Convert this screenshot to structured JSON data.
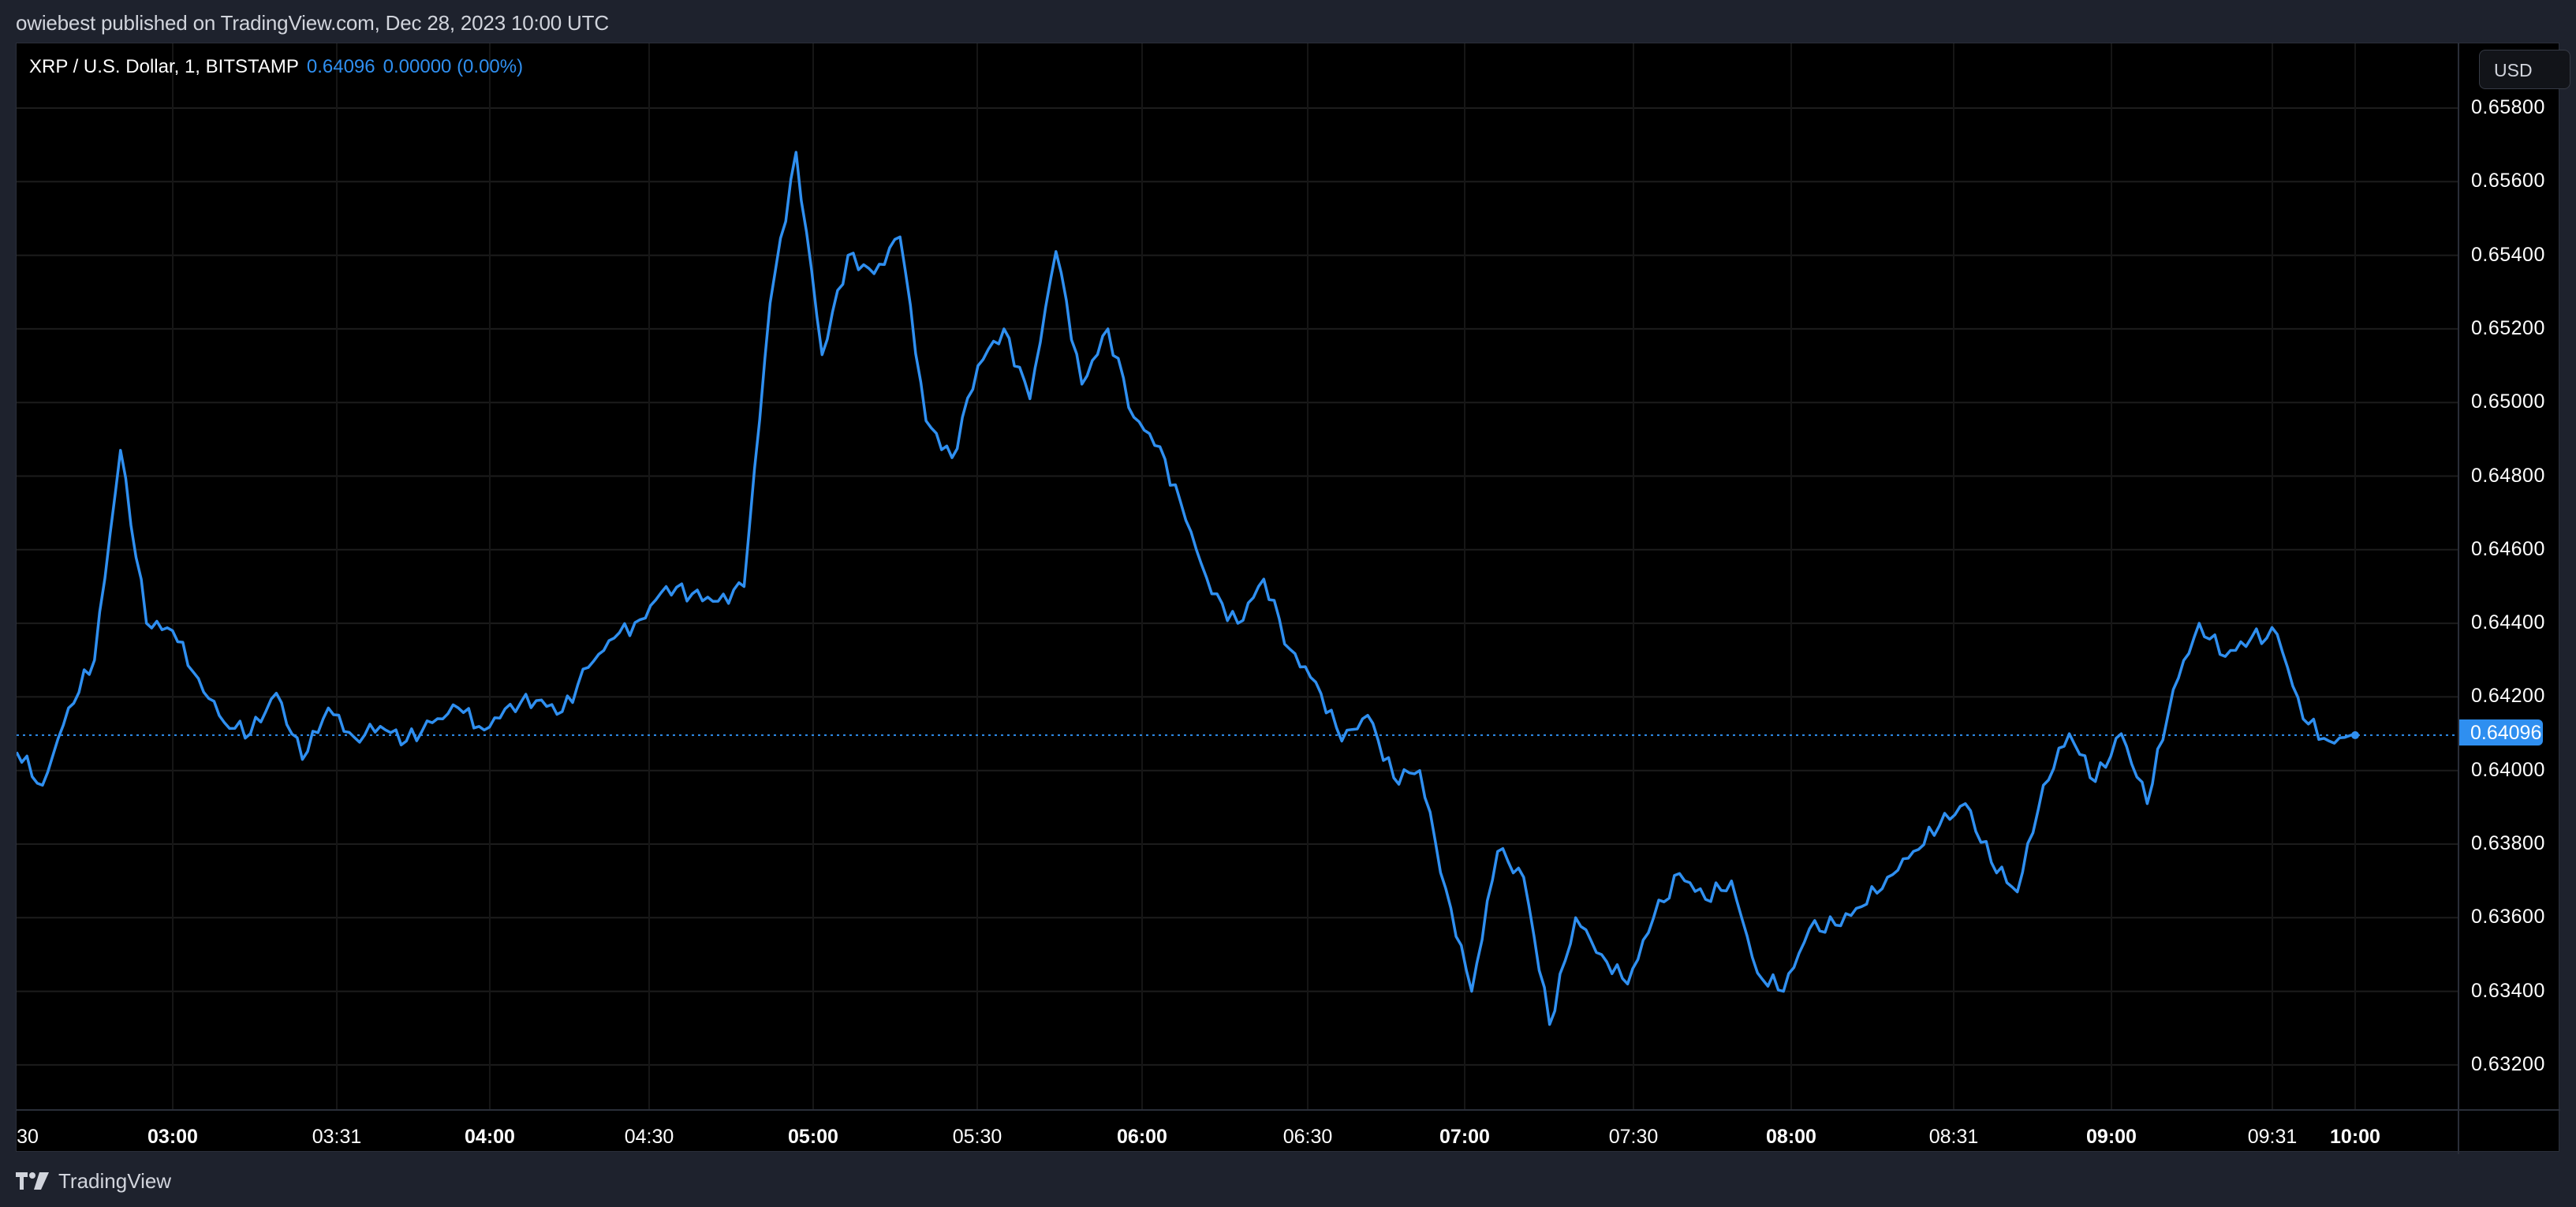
{
  "publish_info": "owiebest published on TradingView.com, Dec 28, 2023 10:00 UTC",
  "legend": {
    "symbol": "XRP / U.S. Dollar, 1, BITSTAMP",
    "last": "0.64096",
    "change": "0.00000 (0.00%)"
  },
  "currency_button": "USD",
  "last_price_tag": "0.64096",
  "footer_brand": "TradingView",
  "colors": {
    "line": "#2f8ff0",
    "background": "#000000",
    "frame": "#1e222d",
    "grid": "#1a1a1a",
    "bolt": "#9c3fd0"
  },
  "price_ticks": [
    "0.65800",
    "0.65600",
    "0.65400",
    "0.65200",
    "0.65000",
    "0.64800",
    "0.64600",
    "0.64400",
    "0.64200",
    "0.64000",
    "0.63800",
    "0.63600",
    "0.63400",
    "0.63200"
  ],
  "time_ticks": [
    {
      "label": "30",
      "bold": false
    },
    {
      "label": "03:00",
      "bold": true
    },
    {
      "label": "03:31",
      "bold": false
    },
    {
      "label": "04:00",
      "bold": true
    },
    {
      "label": "04:30",
      "bold": false
    },
    {
      "label": "05:00",
      "bold": true
    },
    {
      "label": "05:30",
      "bold": false
    },
    {
      "label": "06:00",
      "bold": true
    },
    {
      "label": "06:30",
      "bold": false
    },
    {
      "label": "07:00",
      "bold": true
    },
    {
      "label": "07:30",
      "bold": false
    },
    {
      "label": "08:00",
      "bold": true
    },
    {
      "label": "08:31",
      "bold": false
    },
    {
      "label": "09:00",
      "bold": true
    },
    {
      "label": "09:31",
      "bold": false
    },
    {
      "label": "10:00",
      "bold": true
    }
  ],
  "chart_data": {
    "type": "line",
    "title": "XRP / U.S. Dollar, 1, BITSTAMP",
    "xlabel": "Time (UTC), Dec 28, 2023",
    "ylabel": "USD",
    "ylim": [
      0.6314,
      0.6592
    ],
    "grid": true,
    "legend_position": "top-left",
    "last_value": 0.64096,
    "x": [
      "02:30",
      "02:35",
      "02:40",
      "02:45",
      "02:50",
      "02:55",
      "03:00",
      "03:05",
      "03:10",
      "03:15",
      "03:20",
      "03:25",
      "03:30",
      "03:35",
      "03:40",
      "03:45",
      "03:50",
      "03:55",
      "04:00",
      "04:05",
      "04:10",
      "04:15",
      "04:20",
      "04:25",
      "04:30",
      "04:35",
      "04:40",
      "04:45",
      "04:50",
      "04:55",
      "05:00",
      "05:05",
      "05:10",
      "05:15",
      "05:20",
      "05:25",
      "05:30",
      "05:35",
      "05:40",
      "05:45",
      "05:50",
      "05:55",
      "06:00",
      "06:05",
      "06:10",
      "06:15",
      "06:20",
      "06:25",
      "06:30",
      "06:35",
      "06:40",
      "06:45",
      "06:50",
      "06:55",
      "07:00",
      "07:05",
      "07:10",
      "07:15",
      "07:20",
      "07:25",
      "07:30",
      "07:35",
      "07:40",
      "07:45",
      "07:50",
      "07:55",
      "08:00",
      "08:05",
      "08:10",
      "08:15",
      "08:20",
      "08:25",
      "08:30",
      "08:35",
      "08:40",
      "08:45",
      "08:50",
      "08:55",
      "09:00",
      "09:05",
      "09:10",
      "09:15",
      "09:20",
      "09:25",
      "09:30",
      "09:35",
      "09:40",
      "09:45",
      "09:50",
      "09:55",
      "10:00"
    ],
    "series": [
      {
        "name": "XRP/USD close",
        "values": [
          0.6405,
          0.6396,
          0.6417,
          0.643,
          0.6487,
          0.644,
          0.6438,
          0.6425,
          0.6413,
          0.641,
          0.6421,
          0.6403,
          0.6417,
          0.6409,
          0.6412,
          0.6408,
          0.6413,
          0.6417,
          0.6411,
          0.6418,
          0.6419,
          0.6416,
          0.6428,
          0.6436,
          0.6441,
          0.645,
          0.6448,
          0.6446,
          0.645,
          0.6527,
          0.6568,
          0.6513,
          0.654,
          0.6535,
          0.6545,
          0.6495,
          0.6485,
          0.651,
          0.652,
          0.6501,
          0.6541,
          0.6505,
          0.652,
          0.6496,
          0.6488,
          0.6468,
          0.6448,
          0.644,
          0.6452,
          0.6433,
          0.6424,
          0.6408,
          0.6415,
          0.6398,
          0.64,
          0.6368,
          0.634,
          0.6378,
          0.6371,
          0.6331,
          0.636,
          0.635,
          0.6342,
          0.636,
          0.6372,
          0.6365,
          0.637,
          0.6345,
          0.634,
          0.6357,
          0.6358,
          0.6363,
          0.6371,
          0.6378,
          0.6385,
          0.6391,
          0.6375,
          0.6367,
          0.6396,
          0.641,
          0.6397,
          0.641,
          0.6391,
          0.6422,
          0.644,
          0.6431,
          0.6436,
          0.6437,
          0.6414,
          0.6408,
          0.641
        ]
      }
    ]
  }
}
